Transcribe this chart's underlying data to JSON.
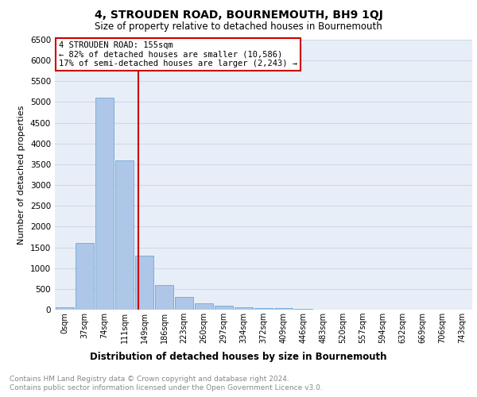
{
  "title": "4, STROUDEN ROAD, BOURNEMOUTH, BH9 1QJ",
  "subtitle": "Size of property relative to detached houses in Bournemouth",
  "xlabel": "Distribution of detached houses by size in Bournemouth",
  "ylabel": "Number of detached properties",
  "footnote1": "Contains HM Land Registry data © Crown copyright and database right 2024.",
  "footnote2": "Contains public sector information licensed under the Open Government Licence v3.0.",
  "bin_labels": [
    "0sqm",
    "37sqm",
    "74sqm",
    "111sqm",
    "149sqm",
    "186sqm",
    "223sqm",
    "260sqm",
    "297sqm",
    "334sqm",
    "372sqm",
    "409sqm",
    "446sqm",
    "483sqm",
    "520sqm",
    "557sqm",
    "594sqm",
    "632sqm",
    "669sqm",
    "706sqm",
    "743sqm"
  ],
  "bar_heights": [
    50,
    1600,
    5100,
    3600,
    1300,
    600,
    300,
    150,
    100,
    60,
    40,
    30,
    20,
    5,
    3,
    2,
    1,
    1,
    0,
    0,
    0
  ],
  "bar_color": "#aec6e8",
  "bar_edge_color": "#5a9fd4",
  "property_label": "4 STROUDEN ROAD: 155sqm",
  "annotation_line1": "← 82% of detached houses are smaller (10,586)",
  "annotation_line2": "17% of semi-detached houses are larger (2,243) →",
  "vline_color": "#cc0000",
  "annotation_box_color": "#ffffff",
  "annotation_box_edge": "#cc0000",
  "ylim": [
    0,
    6500
  ],
  "yticks": [
    0,
    500,
    1000,
    1500,
    2000,
    2500,
    3000,
    3500,
    4000,
    4500,
    5000,
    5500,
    6000,
    6500
  ],
  "grid_color": "#d0d8e8",
  "bg_color": "#e8eef8",
  "title_fontsize": 10,
  "subtitle_fontsize": 8.5,
  "ylabel_fontsize": 8,
  "xlabel_fontsize": 8.5,
  "tick_fontsize": 7.5,
  "xtick_fontsize": 7,
  "footnote_fontsize": 6.5
}
